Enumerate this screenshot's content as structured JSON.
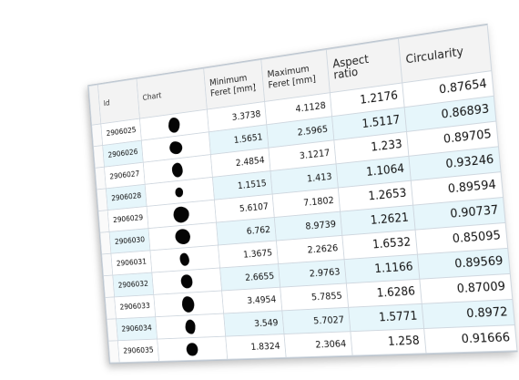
{
  "table": {
    "columns": {
      "id": "Id",
      "chart": "Chart",
      "min_feret": "Minimum Feret [mm]",
      "max_feret": "Maximum Feret [mm]",
      "aspect": "Aspect ratio",
      "circularity": "Circularity"
    },
    "rows": [
      {
        "id": "2906025",
        "min_feret": "3.3738",
        "max_feret": "4.1128",
        "aspect": "1.2176",
        "circularity": "0.87654"
      },
      {
        "id": "2906026",
        "min_feret": "1.5651",
        "max_feret": "2.5965",
        "aspect": "1.5117",
        "circularity": "0.86893"
      },
      {
        "id": "2906027",
        "min_feret": "2.4854",
        "max_feret": "3.1217",
        "aspect": "1.233",
        "circularity": "0.89705"
      },
      {
        "id": "2906028",
        "min_feret": "1.1515",
        "max_feret": "1.413",
        "aspect": "1.1064",
        "circularity": "0.93246"
      },
      {
        "id": "2906029",
        "min_feret": "5.6107",
        "max_feret": "7.1802",
        "aspect": "1.2653",
        "circularity": "0.89594"
      },
      {
        "id": "2906030",
        "min_feret": "6.762",
        "max_feret": "8.9739",
        "aspect": "1.2621",
        "circularity": "0.90737"
      },
      {
        "id": "2906031",
        "min_feret": "1.3675",
        "max_feret": "2.2626",
        "aspect": "1.6532",
        "circularity": "0.85095"
      },
      {
        "id": "2906032",
        "min_feret": "2.6655",
        "max_feret": "2.9763",
        "aspect": "1.1166",
        "circularity": "0.89569"
      },
      {
        "id": "2906033",
        "min_feret": "3.4954",
        "max_feret": "5.7855",
        "aspect": "1.6286",
        "circularity": "0.87009"
      },
      {
        "id": "2906034",
        "min_feret": "3.549",
        "max_feret": "5.7027",
        "aspect": "1.5771",
        "circularity": "0.8972"
      },
      {
        "id": "2906035",
        "min_feret": "1.8324",
        "max_feret": "2.3064",
        "aspect": "1.258",
        "circularity": "0.91666"
      }
    ]
  }
}
